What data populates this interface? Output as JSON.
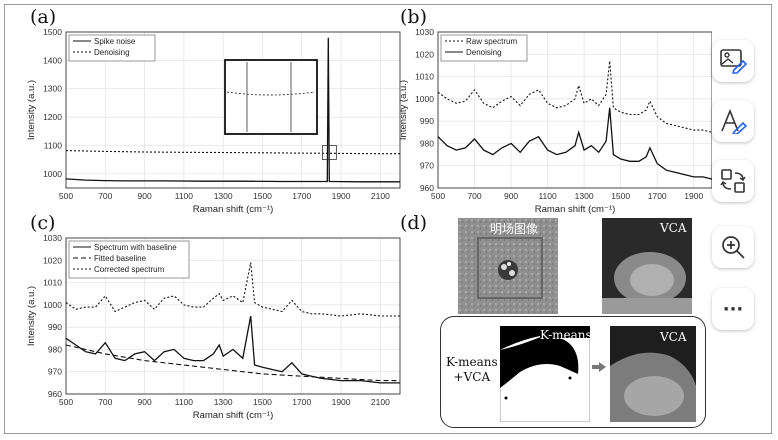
{
  "panels": {
    "a": "(a)",
    "b": "(b)",
    "c": "(c)",
    "d": "(d)"
  },
  "chart_data": [
    {
      "type": "line",
      "panel": "(a)",
      "xlabel": "Raman shift (cm⁻¹)",
      "ylabel": "Intensity (a.u.)",
      "xlim": [
        500,
        2200
      ],
      "ylim": [
        950,
        1500
      ],
      "xticks": [
        "500",
        "700",
        "900",
        "1100",
        "1300",
        "1500",
        "1700",
        "1900",
        "2100"
      ],
      "yticks": [
        "1000",
        "1100",
        "1200",
        "1300",
        "1400",
        "1500"
      ],
      "legend": [
        "Spike noise",
        "Denoising"
      ],
      "grid": true,
      "series": [
        {
          "name": "Spike noise",
          "style": "solid",
          "x": [
            500,
            600,
            700,
            800,
            1000,
            1200,
            1400,
            1600,
            1800,
            1830,
            1835,
            1840,
            1850,
            2000,
            2200
          ],
          "y": [
            982,
            978,
            976,
            975,
            975,
            974,
            974,
            973,
            973,
            973,
            1480,
            973,
            973,
            972,
            972
          ]
        },
        {
          "name": "Denoising",
          "style": "dotted",
          "x": [
            500,
            700,
            900,
            1100,
            1300,
            1500,
            1700,
            1900,
            2100,
            2200
          ],
          "y": [
            1082,
            1079,
            1077,
            1076,
            1075,
            1074,
            1073,
            1072,
            1071,
            1071
          ]
        }
      ]
    },
    {
      "type": "line",
      "panel": "(b)",
      "xlabel": "Raman shift (cm⁻¹)",
      "ylabel": "Intensity (a.u.)",
      "xlim": [
        500,
        2000
      ],
      "ylim": [
        960,
        1030
      ],
      "xticks": [
        "500",
        "700",
        "900",
        "1100",
        "1300",
        "1500",
        "1700",
        "1900"
      ],
      "yticks": [
        "960",
        "970",
        "980",
        "990",
        "1000",
        "1010",
        "1020",
        "1030"
      ],
      "legend": [
        "Raw spectrum",
        "Denoising"
      ],
      "grid": true,
      "series": [
        {
          "name": "Raw spectrum",
          "style": "dotted",
          "x": [
            500,
            550,
            600,
            650,
            700,
            750,
            800,
            850,
            900,
            950,
            1000,
            1050,
            1100,
            1150,
            1200,
            1250,
            1270,
            1300,
            1340,
            1380,
            1420,
            1440,
            1460,
            1500,
            1550,
            1600,
            1640,
            1660,
            1700,
            1750,
            1800,
            1850,
            1900,
            1950,
            2000
          ],
          "y": [
            1003,
            1000,
            998,
            999,
            1004,
            998,
            996,
            999,
            1001,
            997,
            1002,
            1004,
            998,
            996,
            997,
            1000,
            1006,
            998,
            1000,
            997,
            1002,
            1017,
            996,
            994,
            993,
            993,
            995,
            999,
            992,
            989,
            988,
            987,
            986,
            986,
            985
          ]
        },
        {
          "name": "Denoising",
          "style": "solid",
          "x": [
            500,
            550,
            600,
            650,
            700,
            750,
            800,
            850,
            900,
            950,
            1000,
            1050,
            1100,
            1150,
            1200,
            1250,
            1270,
            1300,
            1340,
            1380,
            1420,
            1440,
            1460,
            1500,
            1550,
            1600,
            1640,
            1660,
            1700,
            1750,
            1800,
            1850,
            1900,
            1950,
            2000
          ],
          "y": [
            983,
            979,
            977,
            978,
            982,
            977,
            975,
            978,
            980,
            976,
            981,
            983,
            977,
            975,
            976,
            979,
            985,
            977,
            979,
            976,
            981,
            996,
            975,
            973,
            972,
            972,
            974,
            978,
            971,
            968,
            967,
            966,
            965,
            965,
            964
          ]
        }
      ]
    },
    {
      "type": "line",
      "panel": "(c)",
      "xlabel": "Raman shift (cm⁻¹)",
      "ylabel": "Intensity (a.u.)",
      "xlim": [
        500,
        2200
      ],
      "ylim": [
        960,
        1030
      ],
      "xticks": [
        "500",
        "700",
        "900",
        "1100",
        "1300",
        "1500",
        "1700",
        "1900",
        "2100"
      ],
      "yticks": [
        "960",
        "970",
        "980",
        "990",
        "1000",
        "1010",
        "1020",
        "1030"
      ],
      "legend": [
        "Spectrum with baseline",
        "Fitted baseline",
        "Corrected spectrum"
      ],
      "grid": true,
      "series": [
        {
          "name": "Spectrum with baseline",
          "style": "solid",
          "x": [
            500,
            550,
            600,
            650,
            700,
            750,
            800,
            850,
            900,
            950,
            1000,
            1050,
            1100,
            1150,
            1200,
            1250,
            1280,
            1300,
            1350,
            1400,
            1440,
            1460,
            1500,
            1550,
            1600,
            1650,
            1700,
            1750,
            1800,
            1900,
            2000,
            2100,
            2200
          ],
          "y": [
            985,
            982,
            979,
            978,
            983,
            976,
            975,
            978,
            979,
            975,
            979,
            980,
            976,
            975,
            975,
            978,
            982,
            977,
            980,
            976,
            995,
            973,
            972,
            971,
            970,
            974,
            969,
            968,
            967,
            966,
            966,
            965,
            965
          ]
        },
        {
          "name": "Fitted baseline",
          "style": "dashed",
          "x": [
            500,
            700,
            900,
            1100,
            1300,
            1500,
            1700,
            1900,
            2100,
            2200
          ],
          "y": [
            982,
            978,
            975,
            973,
            971,
            969,
            968,
            967,
            966,
            966
          ]
        },
        {
          "name": "Corrected spectrum",
          "style": "dotted",
          "x": [
            500,
            550,
            600,
            650,
            700,
            750,
            800,
            850,
            900,
            950,
            1000,
            1050,
            1100,
            1150,
            1200,
            1250,
            1280,
            1300,
            1350,
            1400,
            1440,
            1460,
            1500,
            1550,
            1600,
            1650,
            1700,
            1750,
            1800,
            1900,
            2000,
            2100,
            2200
          ],
          "y": [
            1001,
            998,
            999,
            999,
            1004,
            997,
            999,
            1001,
            1002,
            998,
            1003,
            1004,
            1000,
            999,
            999,
            1003,
            1005,
            1002,
            1004,
            1001,
            1019,
            1001,
            999,
            998,
            997,
            1002,
            997,
            996,
            996,
            995,
            996,
            995,
            995
          ]
        }
      ]
    }
  ],
  "panel_d": {
    "label_brightfield": "明场图像",
    "label_vca_top": "VCA",
    "label_kmeans": "K-means",
    "label_vca_bottom": "VCA",
    "label_combo": "K-means\n+VCA"
  },
  "toolbar": {
    "icons": [
      "image-edit-icon",
      "text-edit-icon",
      "convert-icon",
      "zoom-in-icon",
      "more-icon"
    ],
    "more_label": "···"
  }
}
